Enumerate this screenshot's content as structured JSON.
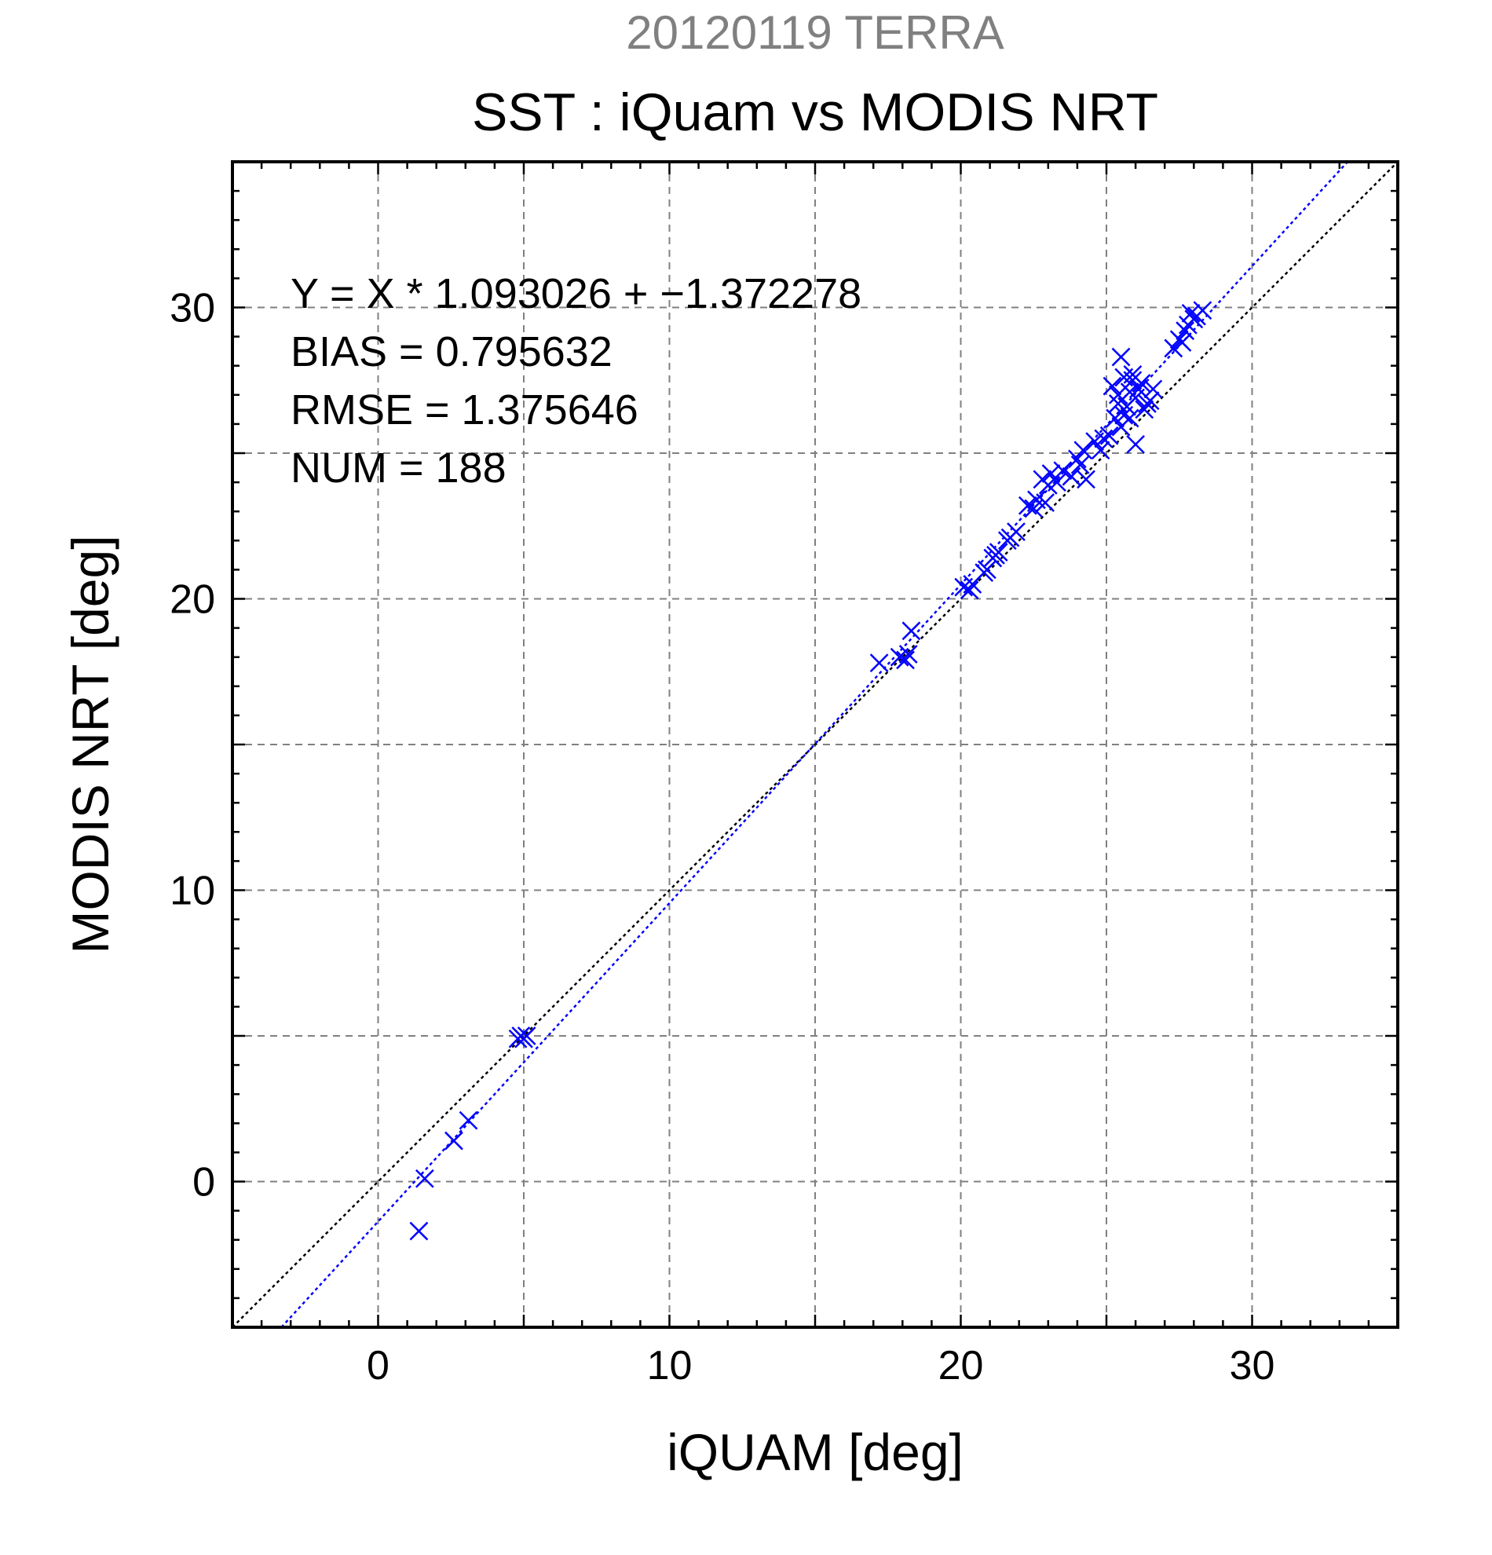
{
  "figure": {
    "supertitle": "20120119 TERRA",
    "title": "SST : iQuam vs MODIS NRT"
  },
  "stats": {
    "line1": "Y = X * 1.093026 + −1.372278",
    "line2": "BIAS = 0.795632",
    "line3": "RMSE = 1.375646",
    "line4": "NUM = 188"
  },
  "colors": {
    "points": "#0000ff",
    "fit_line": "#0000ff",
    "identity_line": "#000000",
    "grid": "#808080",
    "supertitle": "#808080"
  },
  "chart_data": {
    "type": "scatter",
    "title": "SST : iQuam vs MODIS NRT",
    "xlabel": "iQUAM [deg]",
    "ylabel": "MODIS NRT [deg]",
    "xlim": [
      -5,
      35
    ],
    "ylim": [
      -5,
      35
    ],
    "x_ticks": [
      0,
      10,
      20,
      30
    ],
    "y_ticks": [
      0,
      10,
      20,
      30
    ],
    "x_tick_labels": [
      "0",
      "10",
      "20",
      "30"
    ],
    "y_tick_labels": [
      "0",
      "10",
      "20",
      "30"
    ],
    "grid": true,
    "marker": "x",
    "fit": {
      "slope": 1.093026,
      "intercept": -1.372278
    },
    "identity_line": true,
    "series": [
      {
        "x": [
          1.4,
          1.6,
          2.6,
          3.1,
          4.8,
          4.9,
          5.0,
          5.1,
          17.2,
          17.9,
          18.1,
          18.2,
          18.3,
          20.1,
          20.3,
          20.4,
          20.8,
          20.9,
          21.1,
          21.2,
          21.3,
          21.6,
          21.7,
          21.9,
          22.3,
          22.5,
          22.6,
          22.8,
          22.9,
          23.0,
          23.1,
          23.3,
          23.5,
          23.8,
          24.0,
          24.1,
          24.2,
          24.3,
          24.6,
          24.8,
          24.9,
          25.1,
          25.3,
          25.2,
          25.4,
          25.5,
          25.6,
          25.7,
          25.8,
          25.9,
          26.0,
          26.1,
          26.2,
          26.3,
          26.5,
          25.5,
          25.6,
          25.8,
          26.0,
          26.4,
          25.4,
          25.9,
          26.6,
          27.3,
          27.5,
          27.6,
          27.7,
          27.8,
          27.9,
          28.0,
          28.1,
          28.3
        ],
        "y": [
          -1.7,
          0.1,
          1.4,
          2.1,
          4.9,
          5.0,
          4.9,
          5.0,
          17.8,
          18.0,
          17.9,
          18.1,
          18.9,
          20.4,
          20.3,
          20.5,
          20.9,
          21.0,
          21.4,
          21.5,
          21.6,
          22.0,
          22.1,
          22.3,
          23.2,
          23.1,
          23.4,
          24.1,
          23.3,
          23.9,
          24.3,
          24.0,
          24.4,
          24.2,
          24.8,
          24.6,
          25.1,
          24.1,
          25.4,
          25.1,
          25.5,
          25.6,
          26.2,
          27.3,
          26.7,
          28.3,
          27.6,
          26.6,
          27.1,
          27.5,
          26.9,
          27.2,
          27.4,
          26.5,
          26.8,
          25.9,
          26.3,
          26.2,
          25.3,
          26.7,
          27.0,
          27.7,
          27.2,
          28.6,
          28.9,
          28.8,
          29.2,
          29.4,
          29.8,
          29.6,
          29.7,
          29.9
        ]
      }
    ]
  }
}
